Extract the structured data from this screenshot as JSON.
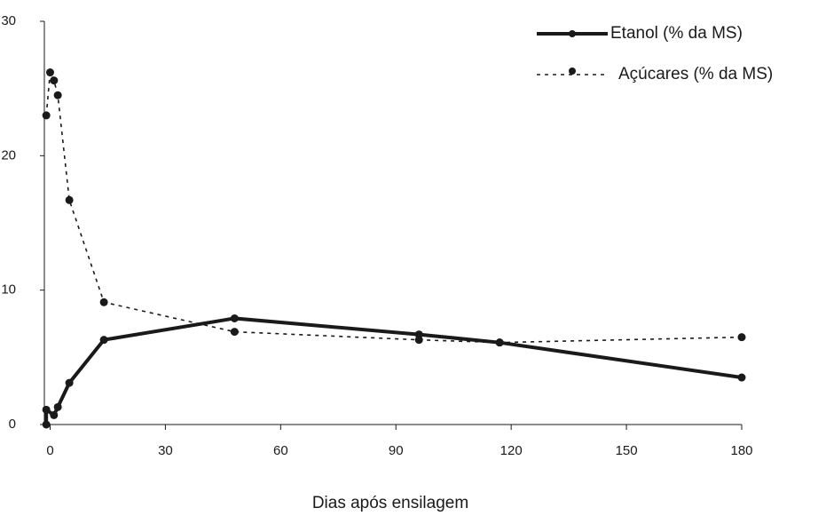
{
  "chart_data": {
    "type": "line",
    "xlabel": "Dias após ensilagem",
    "xlim": [
      -1.5,
      180
    ],
    "xticks": [
      0,
      30,
      60,
      90,
      120,
      150,
      180
    ],
    "ylim": [
      0,
      30
    ],
    "yticks": [
      0,
      10,
      20,
      30
    ],
    "grid": false,
    "legend": "upper right",
    "series": [
      {
        "name": "Etanol (% da MS)",
        "color": "#1a1a1a",
        "style": "solid",
        "x": [
          -1,
          -1,
          1,
          2,
          5,
          14,
          48,
          96,
          117,
          180
        ],
        "values": [
          0,
          1.1,
          0.7,
          1.3,
          3.1,
          6.3,
          7.9,
          6.7,
          6.1,
          3.5
        ]
      },
      {
        "name": "Açúcares (% da MS)",
        "color": "#1a1a1a",
        "style": "dotted",
        "x": [
          -1,
          0,
          1,
          2,
          5,
          14,
          48,
          96,
          117,
          180
        ],
        "values": [
          23,
          26.2,
          25.6,
          24.5,
          16.7,
          9.1,
          6.9,
          6.3,
          6.1,
          6.5
        ]
      }
    ]
  }
}
